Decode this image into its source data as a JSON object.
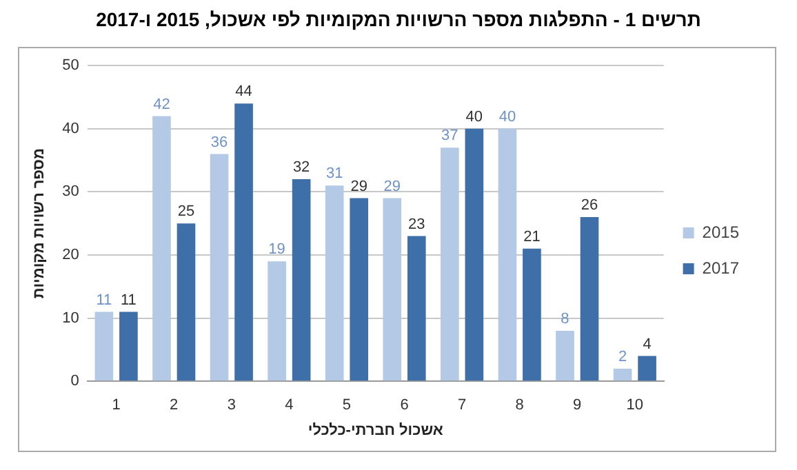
{
  "chart_data": {
    "type": "bar",
    "title": "תרשים 1 - התפלגות מספר הרשויות המקומיות לפי אשכול, 2015 ו-2017",
    "xlabel": "אשכול חברתי-כלכלי",
    "ylabel": "מספר רשויות מקומיות",
    "categories": [
      "1",
      "2",
      "3",
      "4",
      "5",
      "6",
      "7",
      "8",
      "9",
      "10"
    ],
    "series": [
      {
        "name": "2015",
        "color": "#b3c9e6",
        "values": [
          11,
          42,
          36,
          19,
          31,
          29,
          37,
          40,
          8,
          2
        ]
      },
      {
        "name": "2017",
        "color": "#3f6fa8",
        "values": [
          11,
          25,
          44,
          32,
          29,
          23,
          40,
          21,
          26,
          4
        ]
      }
    ],
    "ylim": [
      0,
      50
    ],
    "yticks": [
      0,
      10,
      20,
      30,
      40,
      50
    ],
    "grid": "y",
    "legend": "right",
    "data_labels": true
  }
}
